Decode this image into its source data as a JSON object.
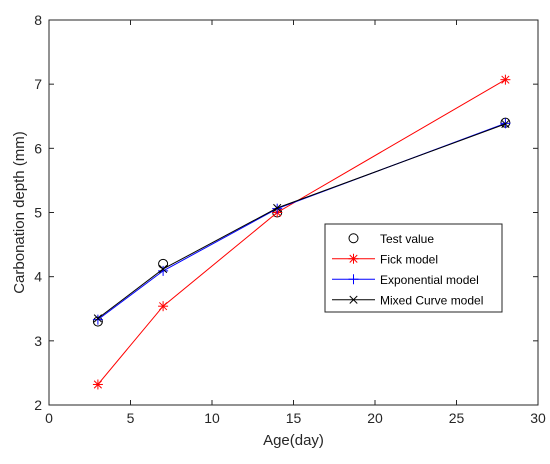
{
  "chart_data": {
    "type": "line",
    "title": "",
    "xlabel": "Age(day)",
    "ylabel": "Carbonation depth (mm)",
    "xlim": [
      0,
      30
    ],
    "ylim": [
      2,
      8
    ],
    "xticks": [
      0,
      5,
      10,
      15,
      20,
      25,
      30
    ],
    "yticks": [
      2,
      3,
      4,
      5,
      6,
      7,
      8
    ],
    "grid": false,
    "legend_position": "center-right",
    "series": [
      {
        "name": "Test value",
        "marker": "circle",
        "line": false,
        "color": "#000000",
        "x": [
          3,
          7,
          14,
          28
        ],
        "y": [
          3.3,
          4.2,
          5.0,
          6.4
        ]
      },
      {
        "name": "Fick model",
        "marker": "asterisk",
        "line": true,
        "color": "#ff0000",
        "x": [
          3,
          7,
          14,
          28
        ],
        "y": [
          2.32,
          3.54,
          5.0,
          7.07
        ]
      },
      {
        "name": "Exponential model",
        "marker": "plus",
        "line": true,
        "color": "#0000ff",
        "x": [
          3,
          7,
          14,
          28
        ],
        "y": [
          3.33,
          4.09,
          5.06,
          6.39
        ]
      },
      {
        "name": "Mixed Curve model",
        "marker": "cross",
        "line": true,
        "color": "#000000",
        "x": [
          3,
          7,
          14,
          28
        ],
        "y": [
          3.35,
          4.12,
          5.07,
          6.38
        ]
      }
    ]
  }
}
